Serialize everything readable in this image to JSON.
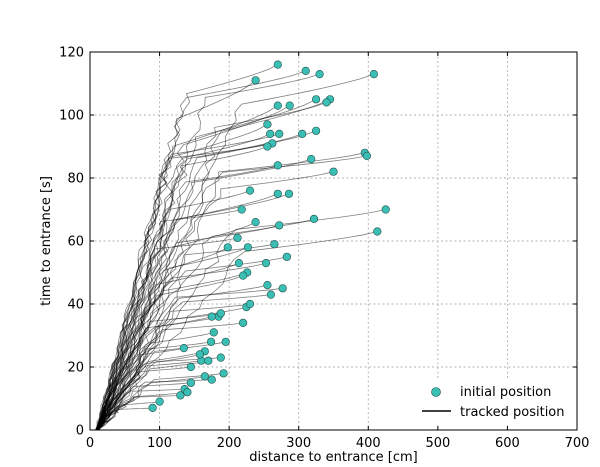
{
  "chart_data": {
    "type": "scatter",
    "xlabel": "distance to entrance [cm]",
    "ylabel": "time to entrance [s]",
    "xlim": [
      0,
      700
    ],
    "ylim": [
      0,
      120
    ],
    "xticks": [
      0,
      100,
      200,
      300,
      400,
      500,
      600,
      700
    ],
    "yticks": [
      0,
      20,
      40,
      60,
      80,
      100,
      120
    ],
    "grid": true,
    "legend": {
      "position": "bottom-right",
      "entries": [
        "initial position",
        "tracked position"
      ]
    },
    "colors": {
      "initial_position": "#3bbfb4",
      "marker_edge": "#1f4f4b",
      "tracked_position": "#000000"
    },
    "series": [
      {
        "name": "initial position",
        "marker": "circle",
        "points": [
          [
            270,
            116
          ],
          [
            310,
            114
          ],
          [
            330,
            113
          ],
          [
            408,
            113
          ],
          [
            238,
            111
          ],
          [
            345,
            105
          ],
          [
            325,
            105
          ],
          [
            340,
            104
          ],
          [
            287,
            103
          ],
          [
            270,
            103
          ],
          [
            325,
            95
          ],
          [
            255,
            97
          ],
          [
            305,
            94
          ],
          [
            259,
            94
          ],
          [
            272,
            94
          ],
          [
            262,
            91
          ],
          [
            255,
            90
          ],
          [
            318,
            86
          ],
          [
            395,
            88
          ],
          [
            398,
            87
          ],
          [
            270,
            84
          ],
          [
            350,
            82
          ],
          [
            230,
            76
          ],
          [
            286,
            75
          ],
          [
            270,
            75
          ],
          [
            218,
            70
          ],
          [
            425,
            70
          ],
          [
            322,
            67
          ],
          [
            272,
            65
          ],
          [
            238,
            66
          ],
          [
            413,
            63
          ],
          [
            212,
            61
          ],
          [
            227,
            58
          ],
          [
            265,
            59
          ],
          [
            198,
            58
          ],
          [
            283,
            55
          ],
          [
            214,
            53
          ],
          [
            253,
            53
          ],
          [
            226,
            50
          ],
          [
            220,
            49
          ],
          [
            255,
            46
          ],
          [
            277,
            45
          ],
          [
            260,
            43
          ],
          [
            225,
            39
          ],
          [
            230,
            40
          ],
          [
            185,
            36
          ],
          [
            175,
            36
          ],
          [
            188,
            37
          ],
          [
            220,
            34
          ],
          [
            178,
            31
          ],
          [
            174,
            28
          ],
          [
            195,
            28
          ],
          [
            165,
            25
          ],
          [
            188,
            23
          ],
          [
            135,
            26
          ],
          [
            160,
            22
          ],
          [
            158,
            24
          ],
          [
            145,
            20
          ],
          [
            170,
            22
          ],
          [
            192,
            18
          ],
          [
            165,
            17
          ],
          [
            175,
            16
          ],
          [
            145,
            15
          ],
          [
            136,
            13
          ],
          [
            130,
            11
          ],
          [
            140,
            12
          ],
          [
            100,
            9
          ],
          [
            90,
            7
          ]
        ]
      },
      {
        "name": "tracked position",
        "line": "solid"
      }
    ]
  }
}
